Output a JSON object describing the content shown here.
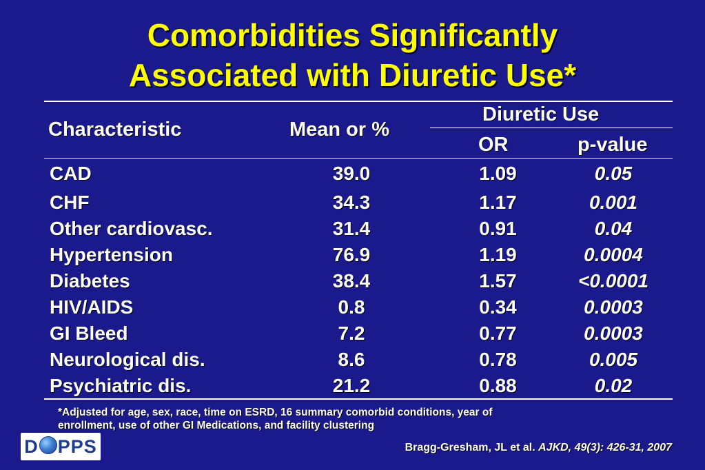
{
  "title": {
    "line1": "Comorbidities Significantly",
    "line2": "Associated with Diuretic Use*"
  },
  "table": {
    "headers": {
      "characteristic": "Characteristic",
      "mean": "Mean or %",
      "group": "Diuretic Use",
      "or": "OR",
      "pvalue": "p-value"
    },
    "rows": [
      {
        "characteristic": "CAD",
        "mean": "39.0",
        "or": "1.09",
        "pvalue": "0.05"
      },
      {
        "characteristic": "CHF",
        "mean": "34.3",
        "or": "1.17",
        "pvalue": "0.001"
      },
      {
        "characteristic": "Other cardiovasc.",
        "mean": "31.4",
        "or": "0.91",
        "pvalue": "0.04"
      },
      {
        "characteristic": "Hypertension",
        "mean": "76.9",
        "or": "1.19",
        "pvalue": "0.0004"
      },
      {
        "characteristic": "Diabetes",
        "mean": "38.4",
        "or": "1.57",
        "pvalue": "<0.0001"
      },
      {
        "characteristic": "HIV/AIDS",
        "mean": "0.8",
        "or": "0.34",
        "pvalue": "0.0003"
      },
      {
        "characteristic": "GI Bleed",
        "mean": "7.2",
        "or": "0.77",
        "pvalue": "0.0003"
      },
      {
        "characteristic": "Neurological dis.",
        "mean": "8.6",
        "or": "0.78",
        "pvalue": "0.005"
      },
      {
        "characteristic": "Psychiatric dis.",
        "mean": "21.2",
        "or": "0.88",
        "pvalue": "0.02"
      }
    ]
  },
  "footnote": {
    "line1": "*Adjusted for age, sex, race, time on ESRD, 16 summary comorbid conditions, year of",
    "line2": "enrollment, use of other GI Medications, and facility clustering"
  },
  "citation": {
    "authors": "Bragg-Gresham, JL et al. ",
    "journal": "AJKD, 49(3): 426-31, 2007"
  },
  "logo": {
    "left": "D",
    "right": "PPS"
  },
  "colors": {
    "background": "#1a1a8c",
    "title": "#ffff00",
    "text": "#ffffff"
  }
}
